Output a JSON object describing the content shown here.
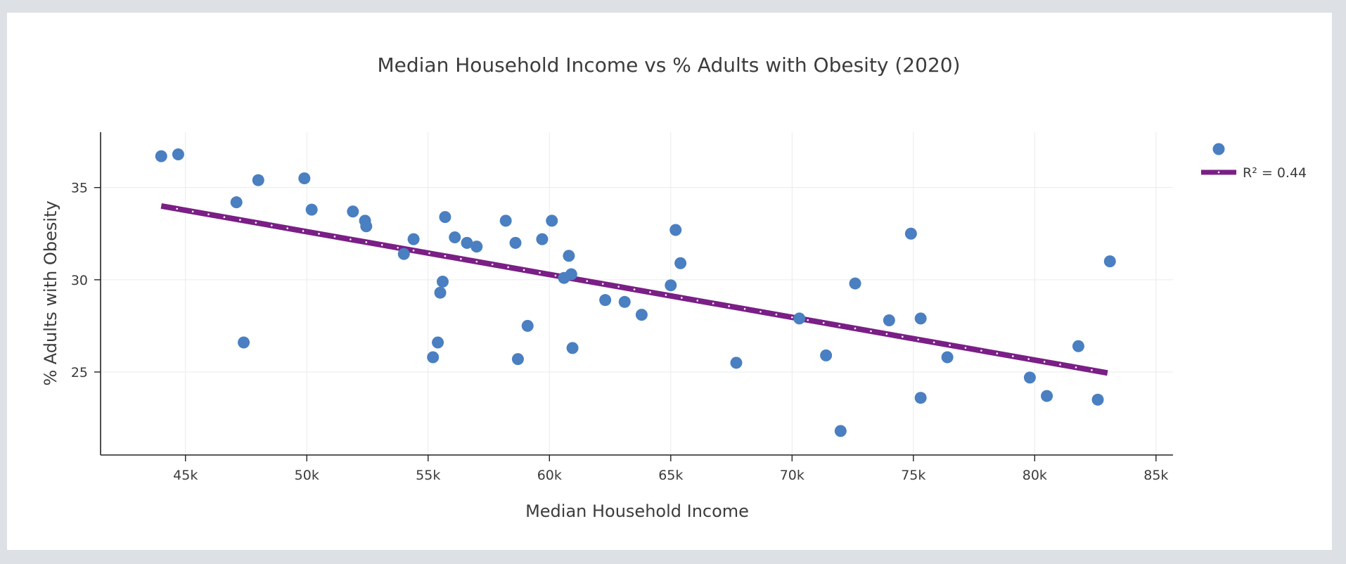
{
  "chart_data": {
    "type": "scatter",
    "title": "Median Household Income vs % Adults with Obesity (2020)",
    "xlabel": "Median Household Income",
    "ylabel": "% Adults with Obesity",
    "xlim": [
      41500,
      85700
    ],
    "ylim": [
      20.5,
      38
    ],
    "x_ticks": [
      {
        "value": 45000,
        "label": "45k"
      },
      {
        "value": 50000,
        "label": "50k"
      },
      {
        "value": 55000,
        "label": "55k"
      },
      {
        "value": 60000,
        "label": "60k"
      },
      {
        "value": 65000,
        "label": "65k"
      },
      {
        "value": 70000,
        "label": "70k"
      },
      {
        "value": 75000,
        "label": "75k"
      },
      {
        "value": 80000,
        "label": "80k"
      },
      {
        "value": 85000,
        "label": "85k"
      }
    ],
    "y_ticks": [
      {
        "value": 25,
        "label": "25"
      },
      {
        "value": 30,
        "label": "30"
      },
      {
        "value": 35,
        "label": "35"
      }
    ],
    "grid": true,
    "legend_position": "top-right",
    "colors": {
      "points": "#4a7fc1",
      "trendline": "#7a1f86",
      "trend_dots": "#ffffff"
    },
    "series": [
      {
        "type": "scatter",
        "points": [
          [
            44000,
            36.7
          ],
          [
            44700,
            36.8
          ],
          [
            47100,
            34.2
          ],
          [
            47400,
            26.6
          ],
          [
            48000,
            35.4
          ],
          [
            49900,
            35.5
          ],
          [
            50200,
            33.8
          ],
          [
            51900,
            33.7
          ],
          [
            52400,
            33.2
          ],
          [
            52450,
            32.9
          ],
          [
            54000,
            31.4
          ],
          [
            54400,
            32.2
          ],
          [
            55200,
            25.8
          ],
          [
            55400,
            26.6
          ],
          [
            55500,
            29.3
          ],
          [
            55600,
            29.9
          ],
          [
            55700,
            33.4
          ],
          [
            56100,
            32.3
          ],
          [
            56600,
            32.0
          ],
          [
            57000,
            31.8
          ],
          [
            58200,
            33.2
          ],
          [
            58600,
            32.0
          ],
          [
            58700,
            25.7
          ],
          [
            59100,
            27.5
          ],
          [
            59700,
            32.2
          ],
          [
            60100,
            33.2
          ],
          [
            60600,
            30.1
          ],
          [
            60800,
            31.3
          ],
          [
            60900,
            30.3
          ],
          [
            60950,
            26.3
          ],
          [
            62300,
            28.9
          ],
          [
            63100,
            28.8
          ],
          [
            63800,
            28.1
          ],
          [
            65000,
            29.7
          ],
          [
            65200,
            32.7
          ],
          [
            65400,
            30.9
          ],
          [
            67700,
            25.5
          ],
          [
            70300,
            27.9
          ],
          [
            71400,
            25.9
          ],
          [
            72000,
            21.8
          ],
          [
            72600,
            29.8
          ],
          [
            74000,
            27.8
          ],
          [
            74900,
            32.5
          ],
          [
            75300,
            27.9
          ],
          [
            75300,
            23.6
          ],
          [
            76400,
            25.8
          ],
          [
            79800,
            24.7
          ],
          [
            80500,
            23.7
          ],
          [
            81800,
            26.4
          ],
          [
            82600,
            23.5
          ],
          [
            83100,
            31.0
          ]
        ]
      },
      {
        "type": "line",
        "name": "R² = 0.44",
        "x": [
          44000,
          83000
        ],
        "y": [
          34.0,
          24.95
        ]
      }
    ]
  }
}
